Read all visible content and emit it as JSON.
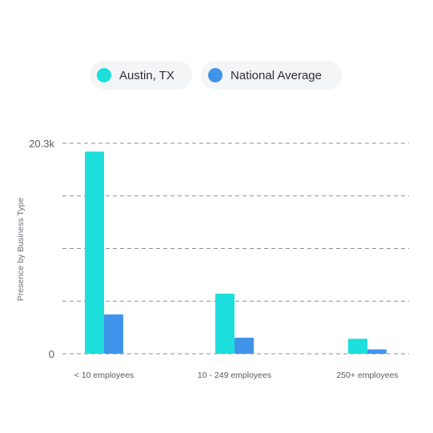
{
  "legend": [
    {
      "label": "Austin, TX",
      "color": "#1ddfdc"
    },
    {
      "label": "National Average",
      "color": "#3f94ea"
    }
  ],
  "chart_data": {
    "type": "bar",
    "categories": [
      "< 10 employees",
      "10 - 249 employees",
      "250+ employees"
    ],
    "series": [
      {
        "name": "Austin, TX",
        "color": "#1ddfdc",
        "values": [
          19500,
          5800,
          1450
        ]
      },
      {
        "name": "National Average",
        "color": "#3f94ea",
        "values": [
          3800,
          1550,
          420
        ]
      }
    ],
    "ylabel": "Presence by Business Type",
    "xlabel": "",
    "ylim": [
      0,
      20300
    ],
    "yticks": [
      {
        "value": 20300,
        "label": "20.3k"
      },
      {
        "value": 0,
        "label": "0"
      }
    ],
    "gridlines": [
      0,
      5075,
      10150,
      15225,
      20300
    ],
    "grid": true,
    "legend_position": "top"
  }
}
